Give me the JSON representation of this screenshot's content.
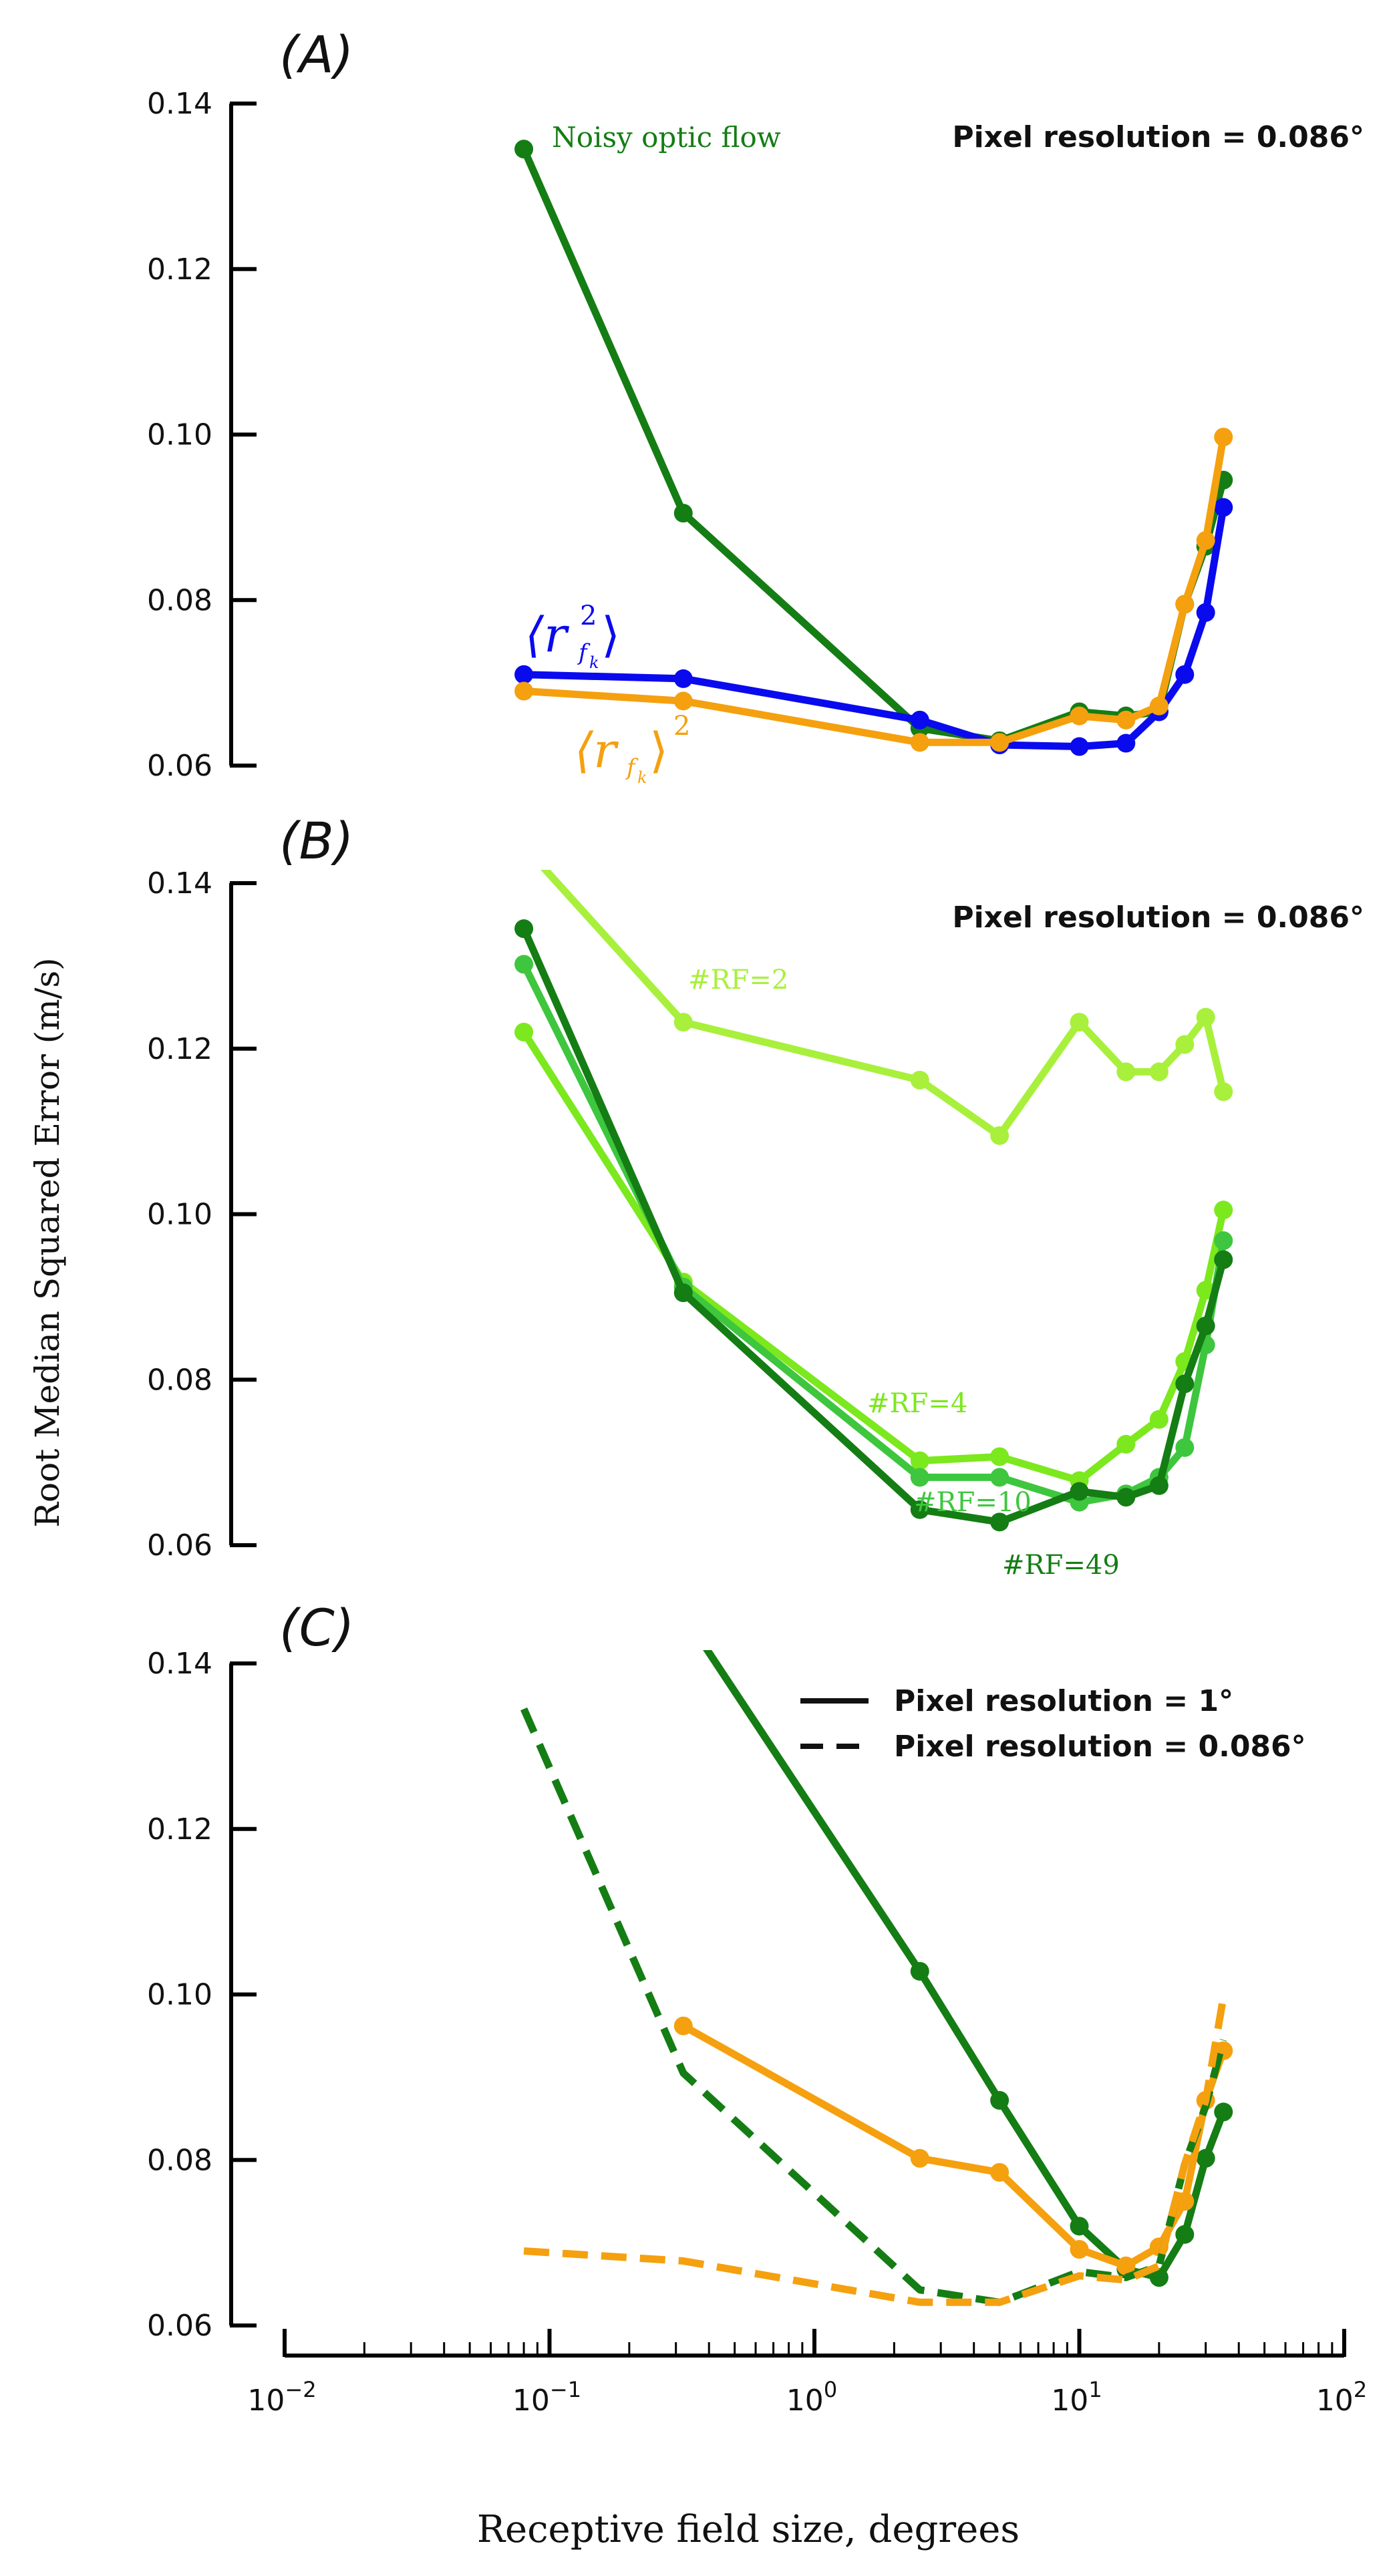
{
  "figure": {
    "ylabel": "Root Median Squared Error (m/s)",
    "xlabel": "Receptive field size, degrees",
    "panel_labels": [
      "(A)",
      "(B)",
      "(C)"
    ],
    "colors": {
      "dark_green": "#147d14",
      "blue": "#0a0aee",
      "orange": "#f5a00f",
      "lime": "#a8f03c",
      "bright_green": "#7ce81e",
      "medium_green": "#3ec63e"
    },
    "xticks": [
      {
        "value": 0.01,
        "base": "10",
        "exp": "−2"
      },
      {
        "value": 0.1,
        "base": "10",
        "exp": "−1"
      },
      {
        "value": 1,
        "base": "10",
        "exp": "0"
      },
      {
        "value": 10,
        "base": "10",
        "exp": "1"
      },
      {
        "value": 100,
        "base": "10",
        "exp": "2"
      }
    ],
    "yticks": [
      "0.14",
      "0.12",
      "0.10",
      "0.08",
      "0.06"
    ]
  },
  "chart_data": [
    {
      "type": "line",
      "panel": "(A)",
      "x_scale": "log",
      "xlim": [
        0.01,
        100
      ],
      "ylim": [
        0.06,
        0.14
      ],
      "annotation": "Pixel resolution = 0.086°",
      "series": [
        {
          "name": "Noisy optic flow",
          "color": "#147d14",
          "markers": true,
          "x": [
            0.08,
            0.32,
            2.5,
            5,
            10,
            15,
            20,
            25,
            30,
            35
          ],
          "y": [
            0.1345,
            0.0905,
            0.0645,
            0.063,
            0.0665,
            0.066,
            0.0665,
            0.0795,
            0.0865,
            0.0945
          ]
        },
        {
          "name": "⟨r²_{f_k}⟩",
          "color": "#0a0aee",
          "markers": true,
          "x": [
            0.08,
            0.32,
            2.5,
            5,
            10,
            15,
            20,
            25,
            30,
            35
          ],
          "y": [
            0.071,
            0.0705,
            0.0655,
            0.0625,
            0.0623,
            0.0627,
            0.0665,
            0.071,
            0.0785,
            0.0912
          ]
        },
        {
          "name": "⟨r_{f_k}⟩²",
          "color": "#f5a00f",
          "markers": true,
          "x": [
            0.08,
            0.32,
            2.5,
            5,
            10,
            15,
            20,
            25,
            30,
            35
          ],
          "y": [
            0.069,
            0.0678,
            0.0628,
            0.0628,
            0.066,
            0.0655,
            0.0672,
            0.0795,
            0.0872,
            0.0997
          ]
        }
      ]
    },
    {
      "type": "line",
      "panel": "(B)",
      "x_scale": "log",
      "xlim": [
        0.01,
        100
      ],
      "ylim": [
        0.06,
        0.14
      ],
      "annotation": "Pixel resolution = 0.086°",
      "series": [
        {
          "name": "#RF=2",
          "color": "#a8f03c",
          "markers": true,
          "x": [
            0.08,
            0.32,
            2.5,
            5,
            10,
            15,
            20,
            25,
            30,
            35
          ],
          "y": [
            0.1445,
            0.1232,
            0.1162,
            0.1095,
            0.1232,
            0.1172,
            0.1172,
            0.1205,
            0.1238,
            0.1148
          ]
        },
        {
          "name": "#RF=4",
          "color": "#7ce81e",
          "markers": true,
          "x": [
            0.08,
            0.32,
            2.5,
            5,
            10,
            15,
            20,
            25,
            30,
            35
          ],
          "y": [
            0.122,
            0.0918,
            0.0702,
            0.0707,
            0.0678,
            0.0722,
            0.0752,
            0.0822,
            0.0908,
            0.1005
          ]
        },
        {
          "name": "#RF=10",
          "color": "#3ec63e",
          "markers": true,
          "x": [
            0.08,
            0.32,
            2.5,
            5,
            10,
            15,
            20,
            25,
            30,
            35
          ],
          "y": [
            0.1302,
            0.0912,
            0.0682,
            0.0682,
            0.0652,
            0.0662,
            0.0682,
            0.0718,
            0.0842,
            0.0968
          ]
        },
        {
          "name": "#RF=49",
          "color": "#147d14",
          "markers": true,
          "x": [
            0.08,
            0.32,
            2.5,
            5,
            10,
            15,
            20,
            25,
            30,
            35
          ],
          "y": [
            0.1345,
            0.0905,
            0.0643,
            0.0628,
            0.0665,
            0.0658,
            0.0672,
            0.0795,
            0.0865,
            0.0945
          ]
        }
      ]
    },
    {
      "type": "line",
      "panel": "(C)",
      "x_scale": "log",
      "xlim": [
        0.01,
        100
      ],
      "ylim": [
        0.06,
        0.14
      ],
      "legend": [
        {
          "label": "Pixel resolution = 1°",
          "style": "solid"
        },
        {
          "label": "Pixel resolution = 0.086°",
          "style": "dashed"
        }
      ],
      "series": [
        {
          "color": "#147d14",
          "style": "solid",
          "markers": true,
          "x": [
            0.32,
            2.5,
            5,
            10,
            15,
            20,
            25,
            30,
            35
          ],
          "y": [
            0.146,
            0.1028,
            0.0872,
            0.072,
            0.0668,
            0.0658,
            0.071,
            0.0802,
            0.0858
          ]
        },
        {
          "color": "#f5a00f",
          "style": "solid",
          "markers": true,
          "x": [
            0.32,
            2.5,
            5,
            10,
            15,
            20,
            25,
            30,
            35
          ],
          "y": [
            0.0962,
            0.0802,
            0.0785,
            0.0692,
            0.0672,
            0.0695,
            0.075,
            0.0872,
            0.0932
          ]
        },
        {
          "color": "#147d14",
          "style": "dashed",
          "markers": false,
          "x": [
            0.08,
            0.32,
            2.5,
            5,
            10,
            15,
            20,
            25,
            30,
            35
          ],
          "y": [
            0.1345,
            0.0905,
            0.0643,
            0.0628,
            0.0665,
            0.0658,
            0.0672,
            0.0795,
            0.0865,
            0.0945
          ]
        },
        {
          "color": "#f5a00f",
          "style": "dashed",
          "markers": false,
          "x": [
            0.08,
            0.32,
            2.5,
            5,
            10,
            15,
            20,
            25,
            30,
            35
          ],
          "y": [
            0.069,
            0.0678,
            0.0628,
            0.0628,
            0.066,
            0.0655,
            0.0672,
            0.0795,
            0.0872,
            0.0997
          ]
        }
      ]
    }
  ]
}
